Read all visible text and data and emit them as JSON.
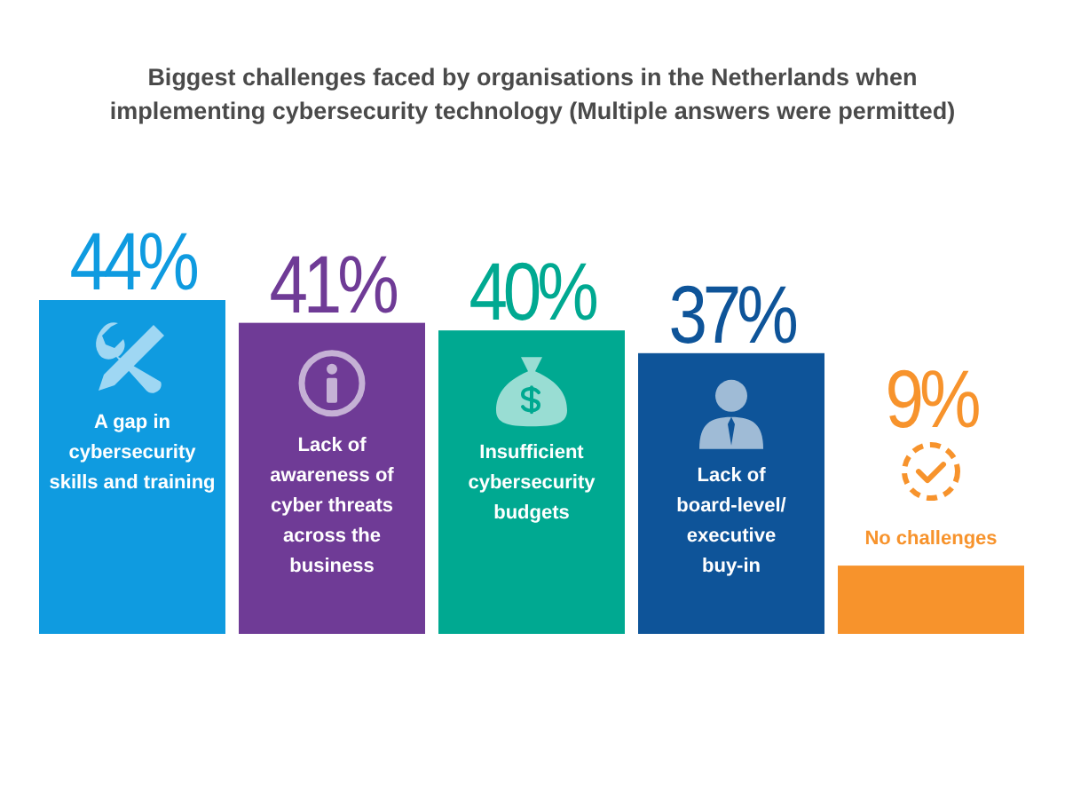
{
  "chart_data": {
    "type": "bar",
    "title": "Biggest challenges faced by organisations in the Netherlands when implementing cybersecurity technology (Multiple answers were permitted)",
    "categories": [
      "A gap in\ncybersecurity\nskills and training",
      "Lack of\nawareness of\ncyber threats\nacross the\nbusiness",
      "Insufficient\ncybersecurity\nbudgets",
      "Lack of\nboard-level/\nexecutive\nbuy-in",
      "No challenges"
    ],
    "values": [
      44,
      41,
      40,
      37,
      9
    ],
    "colors": [
      "#0f9be0",
      "#6f3b96",
      "#00a991",
      "#0e5499",
      "#f7932c"
    ],
    "value_labels": [
      "44%",
      "41%",
      "40%",
      "37%",
      "9%"
    ]
  }
}
